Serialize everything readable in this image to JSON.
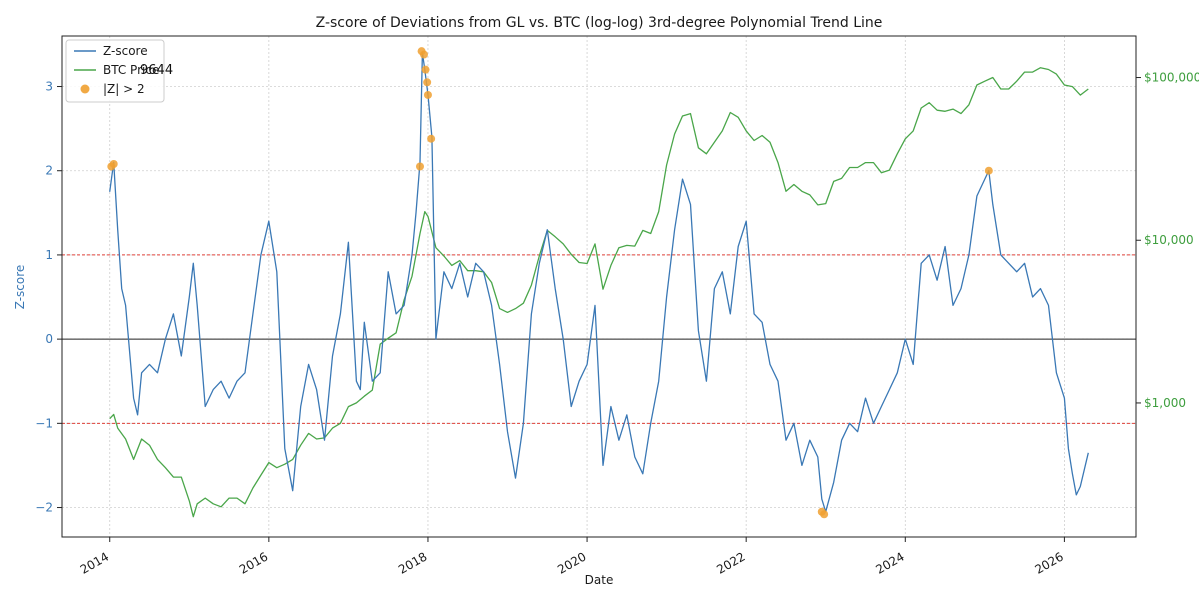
{
  "chart_data": {
    "type": "line",
    "title": "Z-score of Deviations from GL vs. BTC (log-log) 3rd-degree Polynomial Trend Line",
    "xlabel": "Date",
    "ylabel": "Z-score",
    "xlim": [
      2013.4,
      2026.9
    ],
    "ylim": [
      -2.35,
      3.6
    ],
    "y2_scale": "log",
    "y2lim_approx": [
      150,
      180000
    ],
    "x_ticks": [
      2014,
      2016,
      2018,
      2020,
      2022,
      2024,
      2026
    ],
    "x_tick_labels": [
      "2014",
      "2016",
      "2018",
      "2020",
      "2022",
      "2024",
      "2026"
    ],
    "y_ticks": [
      -2,
      -1,
      0,
      1,
      2,
      3
    ],
    "y_tick_labels": [
      "−2",
      "−1",
      "0",
      "1",
      "2",
      "3"
    ],
    "y2_ticks": [
      1000,
      10000,
      100000
    ],
    "y2_tick_labels": [
      "$1,000",
      "$10,000",
      "$100,000"
    ],
    "hlines": [
      {
        "y": 1,
        "style": "dashed",
        "color": "#e0413a"
      },
      {
        "y": -1,
        "style": "dashed",
        "color": "#e0413a"
      },
      {
        "y": 0,
        "style": "solid",
        "color": "#222222"
      }
    ],
    "grid": true,
    "legend_position": "upper-left",
    "annotation": "9644",
    "series": [
      {
        "name": "Z-score",
        "axis": "left",
        "color": "#3a78b5",
        "x": [
          2014.0,
          2014.05,
          2014.1,
          2014.15,
          2014.2,
          2014.3,
          2014.35,
          2014.4,
          2014.5,
          2014.6,
          2014.7,
          2014.8,
          2014.9,
          2015.0,
          2015.05,
          2015.1,
          2015.2,
          2015.3,
          2015.4,
          2015.5,
          2015.6,
          2015.7,
          2015.8,
          2015.9,
          2016.0,
          2016.1,
          2016.2,
          2016.3,
          2016.4,
          2016.5,
          2016.6,
          2016.7,
          2016.8,
          2016.9,
          2017.0,
          2017.1,
          2017.15,
          2017.2,
          2017.3,
          2017.4,
          2017.5,
          2017.6,
          2017.7,
          2017.8,
          2017.85,
          2017.9,
          2017.93,
          2017.96,
          2018.0,
          2018.05,
          2018.1,
          2018.2,
          2018.3,
          2018.4,
          2018.5,
          2018.6,
          2018.7,
          2018.8,
          2018.9,
          2019.0,
          2019.1,
          2019.2,
          2019.3,
          2019.4,
          2019.5,
          2019.6,
          2019.7,
          2019.8,
          2019.9,
          2020.0,
          2020.1,
          2020.2,
          2020.3,
          2020.4,
          2020.5,
          2020.6,
          2020.7,
          2020.8,
          2020.9,
          2021.0,
          2021.1,
          2021.2,
          2021.3,
          2021.4,
          2021.5,
          2021.6,
          2021.7,
          2021.8,
          2021.9,
          2022.0,
          2022.1,
          2022.2,
          2022.3,
          2022.4,
          2022.5,
          2022.6,
          2022.7,
          2022.8,
          2022.9,
          2022.95,
          2023.0,
          2023.1,
          2023.2,
          2023.3,
          2023.4,
          2023.5,
          2023.6,
          2023.7,
          2023.8,
          2023.9,
          2024.0,
          2024.1,
          2024.2,
          2024.3,
          2024.4,
          2024.5,
          2024.6,
          2024.7,
          2024.8,
          2024.9,
          2025.0,
          2025.05,
          2025.1,
          2025.2,
          2025.3,
          2025.4,
          2025.5,
          2025.6,
          2025.7,
          2025.8,
          2025.9,
          2026.0,
          2026.05,
          2026.1,
          2026.15,
          2026.2,
          2026.3
        ],
        "y": [
          1.75,
          2.1,
          1.3,
          0.6,
          0.4,
          -0.7,
          -0.9,
          -0.4,
          -0.3,
          -0.4,
          0.0,
          0.3,
          -0.2,
          0.5,
          0.9,
          0.4,
          -0.8,
          -0.6,
          -0.5,
          -0.7,
          -0.5,
          -0.4,
          0.3,
          1.0,
          1.4,
          0.8,
          -1.3,
          -1.8,
          -0.8,
          -0.3,
          -0.6,
          -1.2,
          -0.2,
          0.3,
          1.15,
          -0.5,
          -0.6,
          0.2,
          -0.5,
          -0.4,
          0.8,
          0.3,
          0.4,
          1.0,
          1.5,
          2.1,
          3.4,
          3.2,
          2.9,
          2.4,
          0.0,
          0.8,
          0.6,
          0.9,
          0.5,
          0.9,
          0.8,
          0.4,
          -0.3,
          -1.1,
          -1.65,
          -1.0,
          0.3,
          0.9,
          1.3,
          0.6,
          0.0,
          -0.8,
          -0.5,
          -0.3,
          0.4,
          -1.5,
          -0.8,
          -1.2,
          -0.9,
          -1.4,
          -1.6,
          -1.0,
          -0.5,
          0.5,
          1.3,
          1.9,
          1.6,
          0.1,
          -0.5,
          0.6,
          0.8,
          0.3,
          1.1,
          1.4,
          0.3,
          0.2,
          -0.3,
          -0.5,
          -1.2,
          -1.0,
          -1.5,
          -1.2,
          -1.4,
          -1.9,
          -2.05,
          -1.7,
          -1.2,
          -1.0,
          -1.1,
          -0.7,
          -1.0,
          -0.8,
          -0.6,
          -0.4,
          0.0,
          -0.3,
          0.9,
          1.0,
          0.7,
          1.1,
          0.4,
          0.6,
          1.0,
          1.7,
          1.9,
          2.0,
          1.6,
          1.0,
          0.9,
          0.8,
          0.9,
          0.5,
          0.6,
          0.4,
          -0.4,
          -0.7,
          -1.3,
          -1.6,
          -1.85,
          -1.75,
          -1.35
        ]
      },
      {
        "name": "BTC Price",
        "axis": "right",
        "color": "#4aa64a",
        "x": [
          2014.0,
          2014.05,
          2014.1,
          2014.2,
          2014.3,
          2014.4,
          2014.5,
          2014.6,
          2014.7,
          2014.8,
          2014.9,
          2015.0,
          2015.05,
          2015.1,
          2015.2,
          2015.3,
          2015.4,
          2015.5,
          2015.6,
          2015.7,
          2015.8,
          2015.9,
          2016.0,
          2016.1,
          2016.2,
          2016.3,
          2016.4,
          2016.5,
          2016.6,
          2016.7,
          2016.8,
          2016.9,
          2017.0,
          2017.1,
          2017.2,
          2017.3,
          2017.4,
          2017.5,
          2017.6,
          2017.7,
          2017.8,
          2017.9,
          2017.96,
          2018.0,
          2018.1,
          2018.2,
          2018.3,
          2018.4,
          2018.5,
          2018.6,
          2018.7,
          2018.8,
          2018.9,
          2019.0,
          2019.1,
          2019.2,
          2019.3,
          2019.4,
          2019.5,
          2019.6,
          2019.7,
          2019.8,
          2019.9,
          2020.0,
          2020.1,
          2020.2,
          2020.3,
          2020.4,
          2020.5,
          2020.6,
          2020.7,
          2020.8,
          2020.9,
          2021.0,
          2021.1,
          2021.2,
          2021.3,
          2021.4,
          2021.5,
          2021.6,
          2021.7,
          2021.8,
          2021.9,
          2022.0,
          2022.1,
          2022.2,
          2022.3,
          2022.4,
          2022.5,
          2022.6,
          2022.7,
          2022.8,
          2022.9,
          2023.0,
          2023.1,
          2023.2,
          2023.3,
          2023.4,
          2023.5,
          2023.6,
          2023.7,
          2023.8,
          2023.9,
          2024.0,
          2024.1,
          2024.2,
          2024.3,
          2024.4,
          2024.5,
          2024.6,
          2024.7,
          2024.8,
          2024.9,
          2025.0,
          2025.1,
          2025.2,
          2025.3,
          2025.4,
          2025.5,
          2025.6,
          2025.7,
          2025.8,
          2025.9,
          2026.0,
          2026.1,
          2026.2,
          2026.3
        ],
        "y": [
          800,
          850,
          700,
          600,
          450,
          600,
          550,
          450,
          400,
          350,
          350,
          250,
          200,
          240,
          260,
          240,
          230,
          260,
          260,
          240,
          300,
          360,
          430,
          400,
          420,
          450,
          550,
          650,
          600,
          610,
          700,
          750,
          950,
          1000,
          1100,
          1200,
          2300,
          2500,
          2700,
          4300,
          6000,
          11000,
          15000,
          14000,
          9000,
          8000,
          7000,
          7500,
          6500,
          6500,
          6400,
          5500,
          3800,
          3600,
          3800,
          4100,
          5300,
          8000,
          11500,
          10500,
          9500,
          8200,
          7300,
          7200,
          9500,
          5000,
          7000,
          9000,
          9300,
          9200,
          11500,
          11000,
          15000,
          29000,
          45000,
          58000,
          60000,
          37000,
          34000,
          40000,
          47000,
          61000,
          57000,
          47000,
          41000,
          44000,
          40000,
          30000,
          20000,
          22000,
          20000,
          19000,
          16500,
          16800,
          23000,
          24000,
          28000,
          28000,
          30000,
          30000,
          26000,
          27000,
          34000,
          42000,
          47000,
          65000,
          70000,
          63000,
          62000,
          64000,
          60000,
          68000,
          90000,
          95000,
          100000,
          85000,
          85000,
          95000,
          108000,
          108000,
          115000,
          112000,
          105000,
          90000,
          88000,
          78000,
          85000
        ]
      },
      {
        "name": "|Z| > 2",
        "type": "scatter",
        "axis": "left",
        "color": "#f0a030",
        "x": [
          2014.02,
          2014.05,
          2017.9,
          2017.92,
          2017.95,
          2017.97,
          2017.99,
          2018.0,
          2018.04,
          2025.05,
          2022.95,
          2022.98
        ],
        "y": [
          2.05,
          2.08,
          2.05,
          3.42,
          3.38,
          3.2,
          3.05,
          2.9,
          2.38,
          2.0,
          -2.05,
          -2.08
        ]
      }
    ]
  }
}
